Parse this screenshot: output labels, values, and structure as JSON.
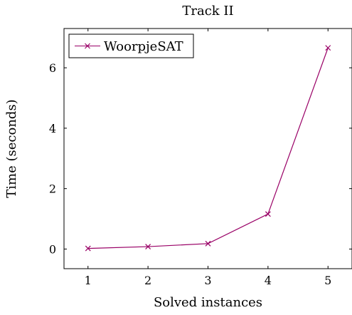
{
  "chart_data": {
    "type": "line",
    "title": "Track II",
    "xlabel": "Solved instances",
    "ylabel": "Time (seconds)",
    "x": [
      1,
      2,
      3,
      4,
      5
    ],
    "xlim": [
      0.6,
      5.4
    ],
    "ylim": [
      -0.65,
      7.3
    ],
    "xticks": [
      1,
      2,
      3,
      4,
      5
    ],
    "yticks": [
      0,
      2,
      4,
      6
    ],
    "grid": false,
    "legend_position": "top-left",
    "series": [
      {
        "name": "WoorpjeSAT",
        "color": "#990066",
        "marker": "x",
        "values": [
          0.02,
          0.08,
          0.18,
          1.16,
          6.66
        ]
      }
    ]
  }
}
